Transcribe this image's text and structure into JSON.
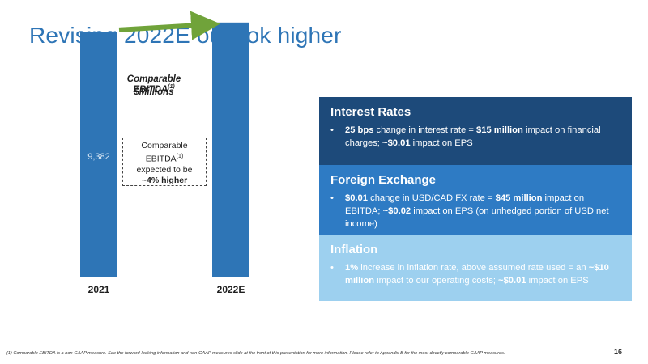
{
  "title": "Revising 2022E outlook higher",
  "chart": {
    "title_main": "Comparable EBITDA",
    "title_sup": "(1)",
    "subtitle": "$Millions",
    "bar_color": "#2e75b6",
    "arrow_color": "#70a33a",
    "annotation": {
      "line1": "Comparable",
      "line2": "EBITDA",
      "line2_sup": "(1)",
      "line3": "expected to be",
      "line4": "~4% higher"
    }
  },
  "chart_data": {
    "type": "bar",
    "categories": [
      "2021",
      "2022E"
    ],
    "values": [
      9382,
      9757
    ],
    "data_labels": [
      "9,382",
      ""
    ],
    "ylim": [
      0,
      10000
    ]
  },
  "panels": {
    "interest": {
      "heading": "Interest Rates",
      "b1": "25 bps",
      "t1": " change in interest rate = ",
      "b2": "$15 million",
      "t2": " impact on financial charges; ",
      "b3": "~$0.01",
      "t3": " impact on EPS",
      "color": "#1d4a7a"
    },
    "fx": {
      "heading": "Foreign Exchange",
      "b1": "$0.01",
      "t1": " change in USD/CAD FX rate = ",
      "b2": "$45 million",
      "t2": " impact on EBITDA; ",
      "b3": "~$0.02",
      "t3": " impact on EPS (on unhedged portion of USD net income)",
      "color": "#2e7bc4"
    },
    "inflation": {
      "heading": "Inflation",
      "b1": "1%",
      "t1": " increase in inflation rate, above assumed rate used = an ",
      "b2": "~$10 million",
      "t2": " impact to our operating costs; ",
      "b3": "~$0.01",
      "t3": " impact on EPS",
      "color": "#9dd0ef"
    }
  },
  "footnote": "(1) Comparable EBITDA is a non-GAAP measure. See the forward-looking information and non-GAAP measures slide at the front of this presentation for more information. Please refer to Appendix B for the most directly comparable GAAP measures.",
  "page_number": "16"
}
